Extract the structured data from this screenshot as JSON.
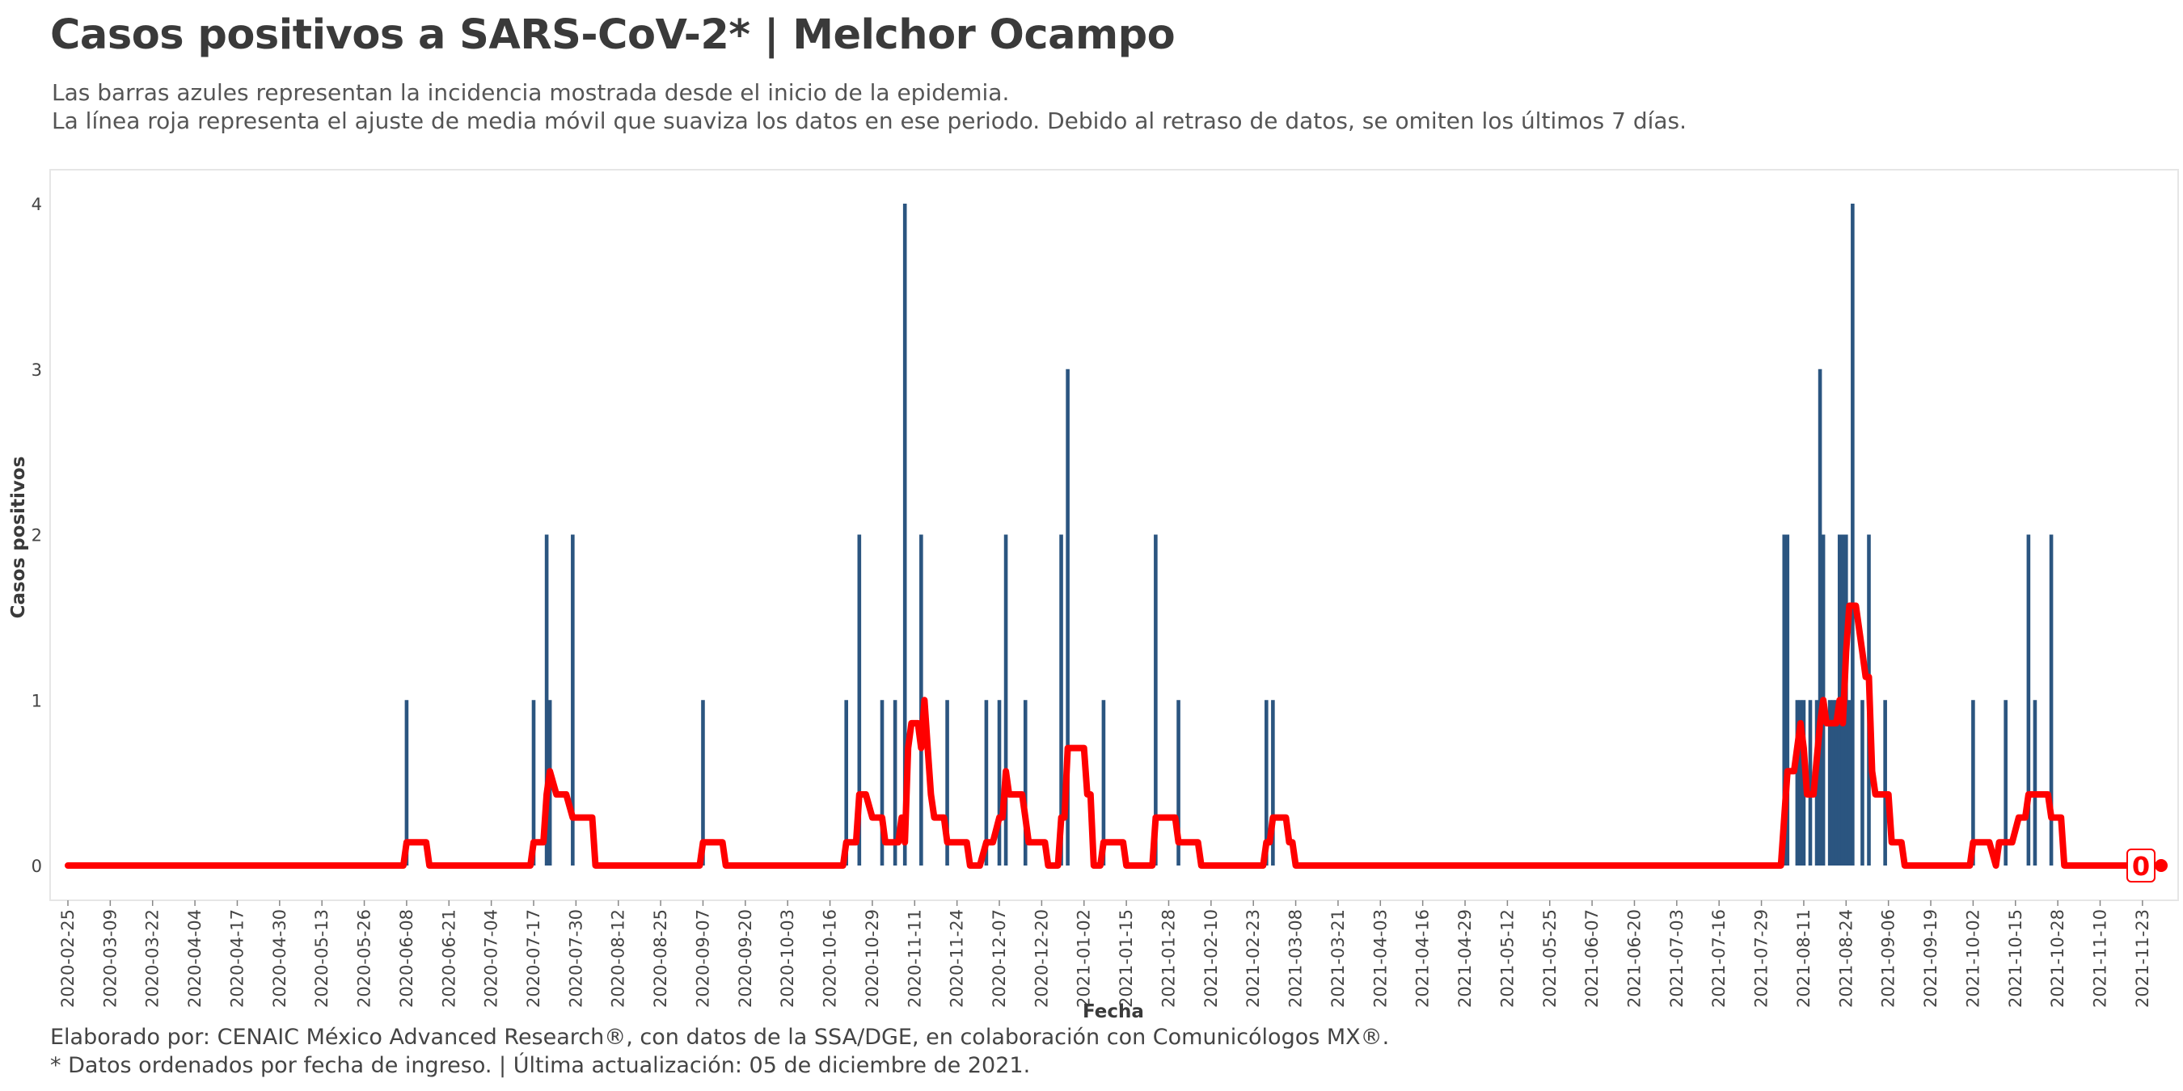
{
  "header": {
    "title": "Casos positivos a SARS-CoV-2* | Melchor Ocampo",
    "subtitle_1": "Las barras azules representan la incidencia mostrada desde el inicio de la epidemia.",
    "subtitle_2": "La línea roja representa el ajuste de media móvil que suaviza los datos en ese periodo. Debido al retraso de datos, se omiten los últimos 7 días."
  },
  "footer": {
    "caption_1": "Elaborado por: CENAIC México Advanced Research®, con datos de la SSA/DGE, en colaboración con Comunicólogos MX®.",
    "caption_2": "* Datos ordenados por fecha de ingreso. | Última actualización: 05 de diciembre de 2021."
  },
  "colors": {
    "bars": "#2b5580",
    "line": "#ff0000",
    "text": "#3a3a3a",
    "grid_border": "#e6e6e6"
  },
  "chart_data": {
    "type": "bar",
    "xlabel": "Fecha",
    "ylabel": "Casos positivos",
    "x_range": [
      "2020-02-25",
      "2021-11-28"
    ],
    "ylim": [
      0,
      4
    ],
    "y_ticks": [
      0,
      1,
      2,
      3,
      4
    ],
    "x_ticks": [
      "2020-02-25",
      "2020-03-09",
      "2020-03-22",
      "2020-04-04",
      "2020-04-17",
      "2020-04-30",
      "2020-05-13",
      "2020-05-26",
      "2020-06-08",
      "2020-06-21",
      "2020-07-04",
      "2020-07-17",
      "2020-07-30",
      "2020-08-12",
      "2020-08-25",
      "2020-09-07",
      "2020-09-20",
      "2020-10-03",
      "2020-10-16",
      "2020-10-29",
      "2020-11-11",
      "2020-11-24",
      "2020-12-07",
      "2020-12-20",
      "2021-01-02",
      "2021-01-15",
      "2021-01-28",
      "2021-02-10",
      "2021-02-23",
      "2021-03-08",
      "2021-03-21",
      "2021-04-03",
      "2021-04-16",
      "2021-04-29",
      "2021-05-12",
      "2021-05-25",
      "2021-06-07",
      "2021-06-20",
      "2021-07-03",
      "2021-07-16",
      "2021-07-29",
      "2021-08-11",
      "2021-08-24",
      "2021-09-06",
      "2021-09-19",
      "2021-10-02",
      "2021-10-15",
      "2021-10-28",
      "2021-11-10",
      "2021-11-23"
    ],
    "grid": false,
    "last_value_label": "0",
    "series": [
      {
        "kind": "bars",
        "points": [
          [
            "2020-06-08",
            1
          ],
          [
            "2020-07-17",
            1
          ],
          [
            "2020-07-21",
            2
          ],
          [
            "2020-07-22",
            1
          ],
          [
            "2020-07-29",
            2
          ],
          [
            "2020-09-07",
            1
          ],
          [
            "2020-10-21",
            1
          ],
          [
            "2020-10-25",
            2
          ],
          [
            "2020-11-01",
            1
          ],
          [
            "2020-11-05",
            1
          ],
          [
            "2020-11-08",
            4
          ],
          [
            "2020-11-13",
            2
          ],
          [
            "2020-11-21",
            1
          ],
          [
            "2020-12-03",
            1
          ],
          [
            "2020-12-07",
            1
          ],
          [
            "2020-12-09",
            2
          ],
          [
            "2020-12-15",
            1
          ],
          [
            "2020-12-26",
            2
          ],
          [
            "2020-12-28",
            3
          ],
          [
            "2021-01-08",
            1
          ],
          [
            "2021-01-24",
            2
          ],
          [
            "2021-01-31",
            1
          ],
          [
            "2021-02-27",
            1
          ],
          [
            "2021-03-01",
            1
          ],
          [
            "2021-08-05",
            2
          ],
          [
            "2021-08-06",
            2
          ],
          [
            "2021-08-09",
            1
          ],
          [
            "2021-08-10",
            1
          ],
          [
            "2021-08-11",
            1
          ],
          [
            "2021-08-13",
            1
          ],
          [
            "2021-08-15",
            1
          ],
          [
            "2021-08-16",
            3
          ],
          [
            "2021-08-17",
            2
          ],
          [
            "2021-08-19",
            1
          ],
          [
            "2021-08-20",
            1
          ],
          [
            "2021-08-21",
            1
          ],
          [
            "2021-08-22",
            2
          ],
          [
            "2021-08-23",
            2
          ],
          [
            "2021-08-24",
            2
          ],
          [
            "2021-08-25",
            1
          ],
          [
            "2021-08-26",
            4
          ],
          [
            "2021-08-29",
            1
          ],
          [
            "2021-08-31",
            2
          ],
          [
            "2021-09-05",
            1
          ],
          [
            "2021-10-02",
            1
          ],
          [
            "2021-10-12",
            1
          ],
          [
            "2021-10-19",
            2
          ],
          [
            "2021-10-21",
            1
          ],
          [
            "2021-10-26",
            2
          ]
        ]
      },
      {
        "kind": "line",
        "name": "",
        "points": [
          [
            "2020-02-25",
            0
          ],
          [
            "2020-06-07",
            0
          ],
          [
            "2020-06-08",
            0.14
          ],
          [
            "2020-06-14",
            0.14
          ],
          [
            "2020-06-15",
            0
          ],
          [
            "2020-07-16",
            0
          ],
          [
            "2020-07-17",
            0.14
          ],
          [
            "2020-07-20",
            0.14
          ],
          [
            "2020-07-21",
            0.43
          ],
          [
            "2020-07-22",
            0.57
          ],
          [
            "2020-07-24",
            0.43
          ],
          [
            "2020-07-27",
            0.43
          ],
          [
            "2020-07-29",
            0.29
          ],
          [
            "2020-08-04",
            0.29
          ],
          [
            "2020-08-05",
            0
          ],
          [
            "2020-09-06",
            0
          ],
          [
            "2020-09-07",
            0.14
          ],
          [
            "2020-09-13",
            0.14
          ],
          [
            "2020-09-14",
            0
          ],
          [
            "2020-10-20",
            0
          ],
          [
            "2020-10-21",
            0.14
          ],
          [
            "2020-10-24",
            0.14
          ],
          [
            "2020-10-25",
            0.43
          ],
          [
            "2020-10-27",
            0.43
          ],
          [
            "2020-10-29",
            0.29
          ],
          [
            "2020-11-01",
            0.29
          ],
          [
            "2020-11-02",
            0.14
          ],
          [
            "2020-11-06",
            0.14
          ],
          [
            "2020-11-07",
            0.29
          ],
          [
            "2020-11-08",
            0.14
          ],
          [
            "2020-11-09",
            0.71
          ],
          [
            "2020-11-10",
            0.86
          ],
          [
            "2020-11-12",
            0.86
          ],
          [
            "2020-11-13",
            0.71
          ],
          [
            "2020-11-14",
            1.0
          ],
          [
            "2020-11-15",
            0.71
          ],
          [
            "2020-11-16",
            0.43
          ],
          [
            "2020-11-17",
            0.29
          ],
          [
            "2020-11-20",
            0.29
          ],
          [
            "2020-11-21",
            0.14
          ],
          [
            "2020-11-27",
            0.14
          ],
          [
            "2020-11-28",
            0
          ],
          [
            "2020-12-01",
            0
          ],
          [
            "2020-12-03",
            0.14
          ],
          [
            "2020-12-05",
            0.14
          ],
          [
            "2020-12-07",
            0.29
          ],
          [
            "2020-12-08",
            0.29
          ],
          [
            "2020-12-09",
            0.57
          ],
          [
            "2020-12-10",
            0.43
          ],
          [
            "2020-12-14",
            0.43
          ],
          [
            "2020-12-15",
            0.29
          ],
          [
            "2020-12-16",
            0.14
          ],
          [
            "2020-12-21",
            0.14
          ],
          [
            "2020-12-22",
            0
          ],
          [
            "2020-12-25",
            0
          ],
          [
            "2020-12-26",
            0.29
          ],
          [
            "2020-12-27",
            0.29
          ],
          [
            "2020-12-28",
            0.71
          ],
          [
            "2021-01-02",
            0.71
          ],
          [
            "2021-01-03",
            0.43
          ],
          [
            "2021-01-04",
            0.43
          ],
          [
            "2021-01-05",
            0
          ],
          [
            "2021-01-07",
            0
          ],
          [
            "2021-01-08",
            0.14
          ],
          [
            "2021-01-14",
            0.14
          ],
          [
            "2021-01-15",
            0
          ],
          [
            "2021-01-23",
            0
          ],
          [
            "2021-01-24",
            0.29
          ],
          [
            "2021-01-30",
            0.29
          ],
          [
            "2021-01-31",
            0.14
          ],
          [
            "2021-02-06",
            0.14
          ],
          [
            "2021-02-07",
            0
          ],
          [
            "2021-02-26",
            0
          ],
          [
            "2021-02-27",
            0.14
          ],
          [
            "2021-02-28",
            0.14
          ],
          [
            "2021-03-01",
            0.29
          ],
          [
            "2021-03-05",
            0.29
          ],
          [
            "2021-03-06",
            0.14
          ],
          [
            "2021-03-07",
            0.14
          ],
          [
            "2021-03-08",
            0
          ],
          [
            "2021-08-04",
            0
          ],
          [
            "2021-08-06",
            0.57
          ],
          [
            "2021-08-08",
            0.57
          ],
          [
            "2021-08-10",
            0.86
          ],
          [
            "2021-08-11",
            0.71
          ],
          [
            "2021-08-12",
            0.43
          ],
          [
            "2021-08-14",
            0.43
          ],
          [
            "2021-08-16",
            0.86
          ],
          [
            "2021-08-17",
            1.0
          ],
          [
            "2021-08-18",
            0.86
          ],
          [
            "2021-08-19",
            0.86
          ],
          [
            "2021-08-20",
            0.86
          ],
          [
            "2021-08-21",
            0.86
          ],
          [
            "2021-08-22",
            1.0
          ],
          [
            "2021-08-23",
            0.86
          ],
          [
            "2021-08-24",
            1.29
          ],
          [
            "2021-08-25",
            1.57
          ],
          [
            "2021-08-27",
            1.57
          ],
          [
            "2021-08-29",
            1.29
          ],
          [
            "2021-08-30",
            1.14
          ],
          [
            "2021-08-31",
            1.14
          ],
          [
            "2021-09-01",
            0.57
          ],
          [
            "2021-09-02",
            0.43
          ],
          [
            "2021-09-06",
            0.43
          ],
          [
            "2021-09-07",
            0.14
          ],
          [
            "2021-09-10",
            0.14
          ],
          [
            "2021-09-11",
            0
          ],
          [
            "2021-10-01",
            0
          ],
          [
            "2021-10-02",
            0.14
          ],
          [
            "2021-10-07",
            0.14
          ],
          [
            "2021-10-09",
            0
          ],
          [
            "2021-10-10",
            0.14
          ],
          [
            "2021-10-14",
            0.14
          ],
          [
            "2021-10-16",
            0.29
          ],
          [
            "2021-10-18",
            0.29
          ],
          [
            "2021-10-19",
            0.43
          ],
          [
            "2021-10-25",
            0.43
          ],
          [
            "2021-10-26",
            0.29
          ],
          [
            "2021-10-29",
            0.29
          ],
          [
            "2021-10-30",
            0
          ],
          [
            "2021-11-28",
            0
          ]
        ]
      }
    ]
  }
}
